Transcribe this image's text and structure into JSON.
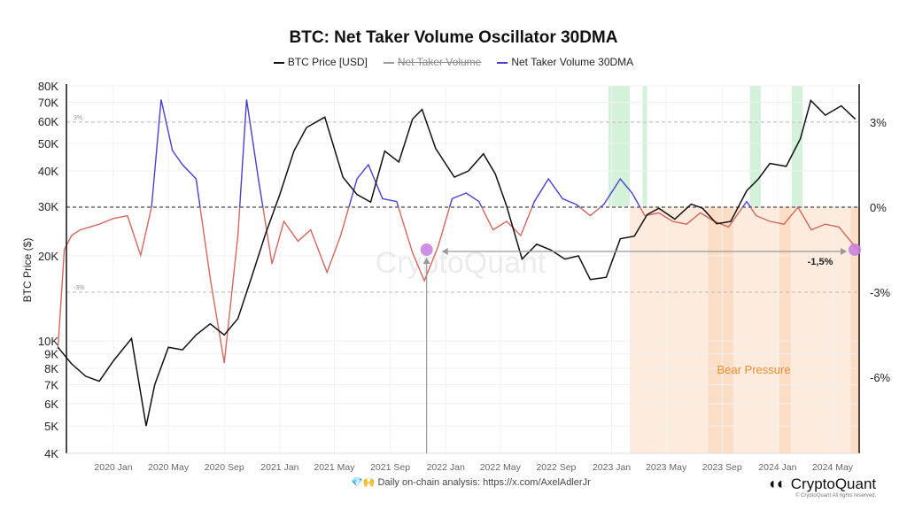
{
  "chart_data": {
    "type": "line",
    "title": "BTC: Net Taker Volume Oscillator 30DMA",
    "legend": [
      {
        "name": "BTC Price [USD]",
        "color": "#111111"
      },
      {
        "name": "Net Taker Volume",
        "color": "#999999",
        "hidden": true
      },
      {
        "name": "Net Taker Volume  30DMA",
        "color": "#4a3fcf"
      }
    ],
    "ylabel": "BTC Price ($)",
    "y_scale": "log",
    "ylim": [
      4000,
      80000
    ],
    "y_ticks": [
      "80K",
      "70K",
      "60K",
      "50K",
      "40K",
      "30K",
      "20K",
      "10K",
      "9K",
      "8K",
      "7K",
      "6K",
      "5K",
      "4K"
    ],
    "y_tick_values": [
      80000,
      70000,
      60000,
      50000,
      40000,
      30000,
      20000,
      10000,
      9000,
      8000,
      7000,
      6000,
      5000,
      4000
    ],
    "y2_ticks": [
      "3%",
      "0%",
      "-3%",
      "-6%"
    ],
    "y2_tick_values": [
      3,
      0,
      -3,
      -6
    ],
    "y2lim": [
      -8.5,
      4.5
    ],
    "x_ticks": [
      "2020 Jan",
      "2020 May",
      "2020 Sep",
      "2021 Jan",
      "2021 May",
      "2021 Sep",
      "2022 Jan",
      "2022 May",
      "2022 Sep",
      "2023 Jan",
      "2023 May",
      "2023 Sep",
      "2024 Jan",
      "2024 May"
    ],
    "x_tick_dates": [
      "2020-01-01",
      "2020-05-01",
      "2020-09-01",
      "2021-01-01",
      "2021-05-01",
      "2021-09-01",
      "2022-01-01",
      "2022-05-01",
      "2022-09-01",
      "2023-01-01",
      "2023-05-01",
      "2023-09-01",
      "2024-01-01",
      "2024-05-01"
    ],
    "threshold_labels": {
      "upper": "3%",
      "lower": "-3%"
    },
    "positive_color": "#4a3fcf",
    "negative_color": "#d4675f",
    "btc_price": {
      "dates": [
        "2019-09-01",
        "2019-10-01",
        "2019-11-01",
        "2019-12-01",
        "2020-01-01",
        "2020-02-10",
        "2020-03-13",
        "2020-04-01",
        "2020-05-01",
        "2020-06-01",
        "2020-07-01",
        "2020-08-01",
        "2020-09-01",
        "2020-10-01",
        "2020-11-01",
        "2020-12-01",
        "2021-01-01",
        "2021-02-01",
        "2021-03-01",
        "2021-04-10",
        "2021-05-20",
        "2021-06-20",
        "2021-07-20",
        "2021-08-20",
        "2021-09-20",
        "2021-10-20",
        "2021-11-10",
        "2021-12-10",
        "2022-01-20",
        "2022-02-20",
        "2022-03-25",
        "2022-04-20",
        "2022-05-15",
        "2022-06-18",
        "2022-07-20",
        "2022-08-20",
        "2022-09-20",
        "2022-10-20",
        "2022-11-15",
        "2022-12-20",
        "2023-01-20",
        "2023-02-20",
        "2023-03-20",
        "2023-04-15",
        "2023-05-20",
        "2023-06-25",
        "2023-07-20",
        "2023-08-20",
        "2023-09-20",
        "2023-10-25",
        "2023-11-20",
        "2023-12-15",
        "2024-01-20",
        "2024-02-20",
        "2024-03-14",
        "2024-04-15",
        "2024-05-20",
        "2024-06-20"
      ],
      "values": [
        9500,
        8300,
        7500,
        7200,
        8500,
        10200,
        5000,
        7000,
        9500,
        9300,
        10500,
        11500,
        10500,
        12000,
        17000,
        24000,
        33000,
        47000,
        57000,
        62000,
        38000,
        33000,
        31000,
        47000,
        43000,
        61000,
        66000,
        48000,
        38000,
        40000,
        46000,
        39000,
        30000,
        19500,
        22000,
        21000,
        19500,
        20000,
        16500,
        16800,
        23000,
        23500,
        28000,
        29500,
        27000,
        30500,
        29500,
        26000,
        26500,
        34000,
        37500,
        42500,
        41500,
        52000,
        71000,
        63000,
        68000,
        61000
      ]
    },
    "oscillator_30dma_pct": {
      "dates": [
        "2019-09-01",
        "2019-09-15",
        "2019-10-01",
        "2019-10-20",
        "2019-11-10",
        "2019-12-01",
        "2020-01-01",
        "2020-02-01",
        "2020-03-01",
        "2020-03-25",
        "2020-04-15",
        "2020-05-10",
        "2020-06-01",
        "2020-07-01",
        "2020-08-01",
        "2020-09-01",
        "2020-10-01",
        "2020-10-20",
        "2020-11-15",
        "2020-12-15",
        "2021-01-10",
        "2021-02-10",
        "2021-03-10",
        "2021-04-15",
        "2021-05-15",
        "2021-06-20",
        "2021-07-15",
        "2021-08-15",
        "2021-09-15",
        "2021-10-20",
        "2021-11-15",
        "2021-12-15",
        "2022-01-15",
        "2022-02-15",
        "2022-03-15",
        "2022-04-15",
        "2022-05-15",
        "2022-06-15",
        "2022-07-15",
        "2022-08-15",
        "2022-09-15",
        "2022-10-15",
        "2022-11-15",
        "2022-12-15",
        "2023-01-20",
        "2023-02-15",
        "2023-03-15",
        "2023-04-15",
        "2023-05-15",
        "2023-06-15",
        "2023-07-15",
        "2023-08-15",
        "2023-09-15",
        "2023-10-25",
        "2023-11-15",
        "2023-12-15",
        "2024-01-15",
        "2024-02-15",
        "2024-03-15",
        "2024-04-15",
        "2024-05-15",
        "2024-06-25"
      ],
      "values": [
        -5,
        -1.5,
        -1.0,
        -0.8,
        -0.7,
        -0.6,
        -0.4,
        -0.3,
        -1.7,
        0.0,
        3.8,
        2.0,
        1.5,
        1.0,
        -2.5,
        -5.5,
        -1.0,
        3.8,
        1.0,
        -2.0,
        -0.5,
        -1.2,
        -0.8,
        -2.3,
        -1.0,
        1.0,
        1.5,
        0.3,
        0.2,
        -1.6,
        -2.6,
        -1.4,
        0.3,
        0.5,
        0.2,
        -0.8,
        -0.5,
        -1.0,
        0.2,
        1.0,
        0.3,
        0.1,
        -0.3,
        0.1,
        1.0,
        0.5,
        -0.3,
        -0.2,
        -0.5,
        -0.6,
        -0.2,
        -0.5,
        -0.7,
        0.2,
        -0.3,
        -0.5,
        -0.6,
        0.0,
        -0.8,
        -0.6,
        -0.7,
        -1.5
      ]
    },
    "highlight_bull": [
      [
        "2022-12-25",
        "2023-02-10"
      ],
      [
        "2023-03-10",
        "2023-03-20"
      ],
      [
        "2023-11-01",
        "2023-11-25"
      ],
      [
        "2024-02-01",
        "2024-02-25"
      ]
    ],
    "highlight_bear": [
      [
        "2023-02-10",
        "2024-07-10"
      ]
    ],
    "annotations": {
      "level_label": "-1,5%",
      "zone_label": "Bear Pressure",
      "marker_dates": [
        "2021-11-20",
        "2024-07-01"
      ],
      "marker_value_pct": -1.5
    }
  },
  "footer": {
    "emoji": "💎🙌",
    "text": "Daily on-chain analysis: ",
    "link": "https://x.com/AxelAdlerJr"
  },
  "brand": {
    "name": "CryptoQuant",
    "watermark": "CryptoQuant",
    "copyright": "© CryptoQuant All rights reserved."
  }
}
